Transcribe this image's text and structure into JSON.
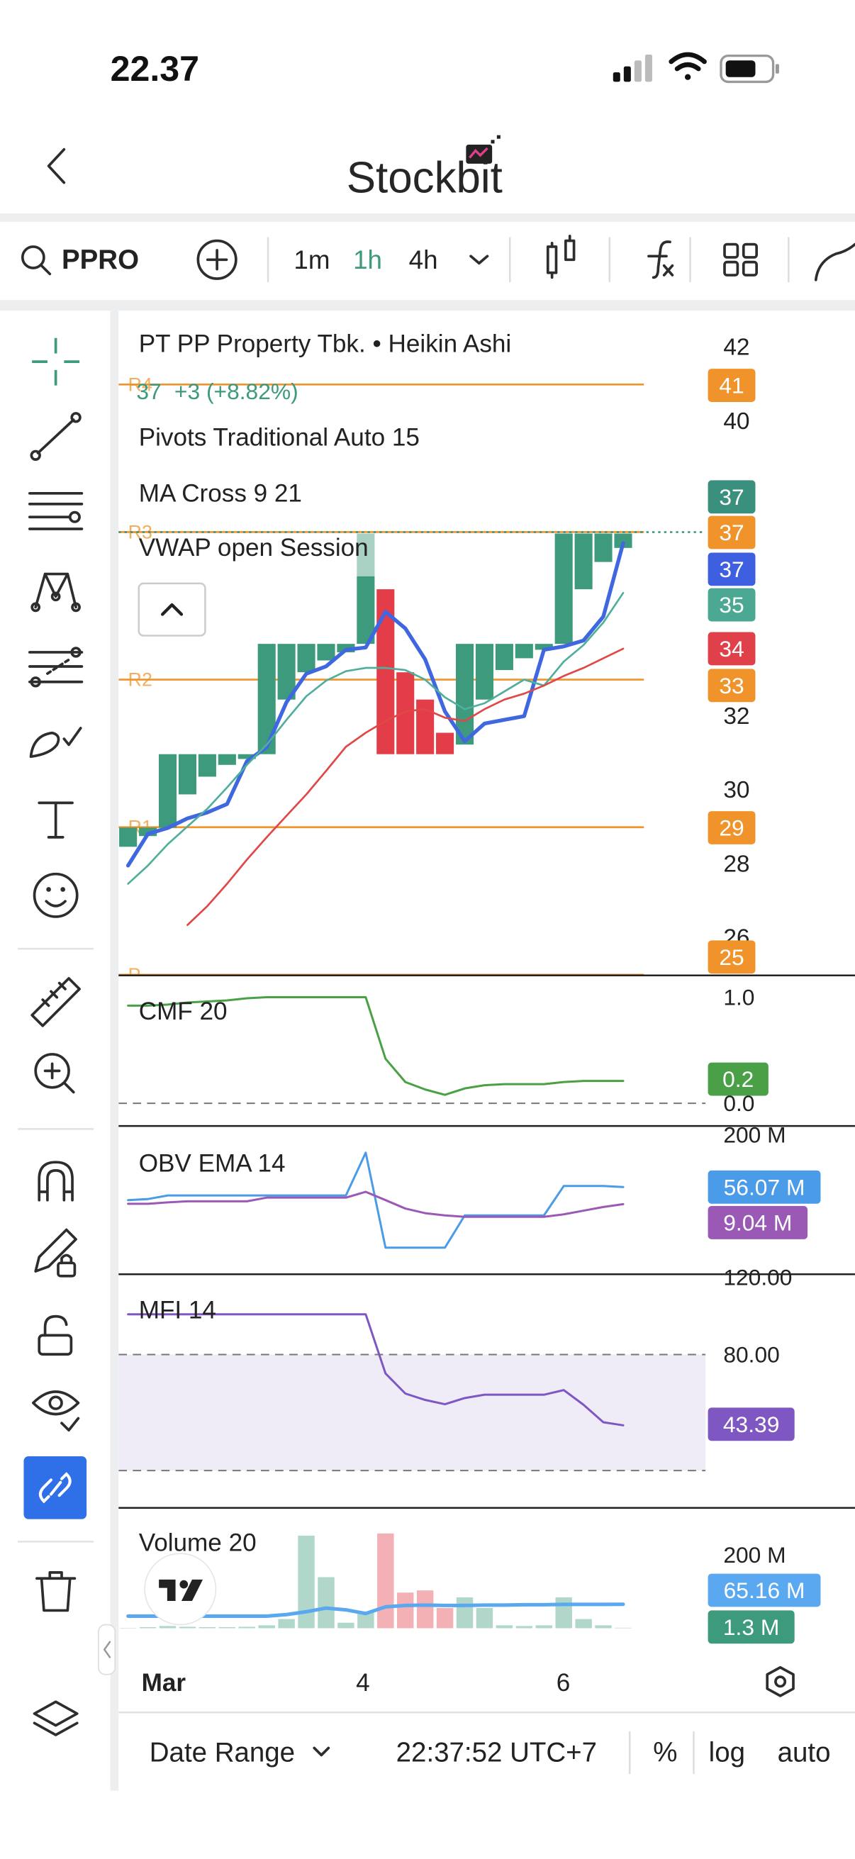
{
  "status_bar": {
    "time": "22.37"
  },
  "header": {
    "title": "Stockbit"
  },
  "toolbar": {
    "symbol": "PPRO",
    "intervals": [
      "1m",
      "1h",
      "4h"
    ],
    "selected_interval": 1
  },
  "legend": {
    "title": "PT PP Property Tbk. • Heikin Ashi",
    "last": "37",
    "change": "+3 (+8.82%)",
    "indicators": [
      "Pivots Traditional Auto 15",
      "MA Cross 9 21",
      "VWAP open Session"
    ]
  },
  "chart": {
    "type": "candlestick",
    "up_color": "#3d9a7c",
    "down_color": "#e23d48",
    "price_pane": {
      "ylim": [
        25,
        43
      ],
      "yticks": [
        26,
        28,
        30,
        32,
        40,
        42
      ],
      "candles": [
        {
          "open": 28.47,
          "close": 28.99
        },
        {
          "open": 28.76,
          "close": 28.99
        },
        {
          "open": 28.99,
          "close": 30.98
        },
        {
          "open": 29.89,
          "close": 30.98
        },
        {
          "open": 30.37,
          "close": 30.98
        },
        {
          "open": 30.69,
          "close": 30.98
        },
        {
          "open": 30.85,
          "close": 30.98
        },
        {
          "open": 30.98,
          "close": 33.97
        },
        {
          "open": 32.46,
          "close": 33.97
        },
        {
          "open": 33.2,
          "close": 33.97
        },
        {
          "open": 33.52,
          "close": 33.97
        },
        {
          "open": 33.74,
          "close": 33.97
        },
        {
          "open": 33.97,
          "close": 35.8,
          "high": 36.96
        },
        {
          "open": 35.45,
          "close": 30.98
        },
        {
          "open": 33.2,
          "close": 30.98
        },
        {
          "open": 32.46,
          "close": 30.98
        },
        {
          "open": 31.56,
          "close": 30.98
        },
        {
          "open": 31.24,
          "close": 33.97
        },
        {
          "open": 32.46,
          "close": 33.97
        },
        {
          "open": 33.26,
          "close": 33.97
        },
        {
          "open": 33.58,
          "close": 33.97
        },
        {
          "open": 33.81,
          "close": 33.97
        },
        {
          "open": 33.97,
          "close": 36.96
        },
        {
          "open": 35.45,
          "close": 36.96
        },
        {
          "open": 36.19,
          "close": 36.96
        },
        {
          "open": 36.57,
          "close": 36.96
        }
      ],
      "lines": [
        {
          "color": "#3f67e0",
          "values": [
            27.96,
            28.82,
            28.98,
            29.24,
            29.4,
            29.63,
            30.79,
            31.17,
            32.39,
            33.16,
            33.36,
            33.81,
            33.87,
            34.84,
            34.39,
            33.55,
            32.14,
            31.33,
            31.81,
            31.91,
            32.01,
            33.81,
            33.9,
            34.06,
            34.71,
            36.7
          ]
        },
        {
          "color": "#4fae9c",
          "values": [
            27.47,
            27.96,
            28.54,
            29.02,
            29.5,
            30.08,
            30.69,
            31.24,
            31.91,
            32.55,
            32.97,
            33.23,
            33.32,
            33.32,
            33.26,
            33.0,
            32.52,
            32.2,
            32.36,
            32.68,
            33.0,
            32.84,
            33.49,
            33.94,
            34.55,
            35.35
          ]
        },
        {
          "color": "#e04848",
          "values": [
            null,
            null,
            null,
            26.35,
            26.86,
            27.47,
            28.12,
            28.73,
            29.31,
            29.89,
            30.53,
            31.18,
            31.56,
            31.88,
            32.14,
            32.2,
            31.97,
            31.88,
            32.2,
            32.46,
            32.62,
            32.84,
            33.1,
            33.32,
            33.58,
            33.84
          ]
        }
      ],
      "pivot_color": "#f0932b",
      "pivots": [
        {
          "label": "R4",
          "value": 41
        },
        {
          "label": "R3",
          "value": 37
        },
        {
          "label": "R2",
          "value": 33
        },
        {
          "label": "R1",
          "value": 29
        },
        {
          "label": "P",
          "value": 25
        }
      ],
      "last_price_line": 37,
      "price_labels": [
        {
          "value": 41,
          "color": "#f0932b"
        },
        {
          "value": 37,
          "color": "#3a8f7d"
        },
        {
          "value": 37,
          "color": "#f0932b"
        },
        {
          "value": 37,
          "color": "#3d5fe0"
        },
        {
          "value": 35,
          "color": "#4aa893"
        },
        {
          "value": 34,
          "color": "#e0404a"
        },
        {
          "value": 33,
          "color": "#f0932b"
        },
        {
          "value": 29,
          "color": "#f0932b"
        },
        {
          "value": 25,
          "color": "#f0932b"
        }
      ]
    },
    "cmf": {
      "title": "CMF 20",
      "ylim": [
        -0.22,
        1.2
      ],
      "yticks": [
        {
          "value": 1,
          "label": "1.0"
        },
        {
          "value": 0,
          "label": "0.0"
        }
      ],
      "levels": [
        0
      ],
      "series": [
        {
          "color": "#4aa046",
          "values": [
            0.92,
            0.92,
            0.93,
            0.95,
            0.96,
            0.97,
            0.99,
            1.0,
            1.0,
            1.0,
            1.0,
            1.0,
            1.0,
            0.42,
            0.2,
            0.13,
            0.08,
            0.14,
            0.17,
            0.18,
            0.18,
            0.18,
            0.2,
            0.21,
            0.21,
            0.21
          ],
          "value_label": "0.2"
        }
      ]
    },
    "obv": {
      "title": "OBV EMA 14",
      "ylim": [
        -186,
        223
      ],
      "yticks": [
        {
          "value": 200,
          "label": "200 M"
        }
      ],
      "series": [
        {
          "color": "#4a9be8",
          "values": [
            20,
            23,
            33,
            33,
            33,
            33,
            33,
            33,
            33,
            33,
            33,
            33,
            151,
            -111,
            -111,
            -111,
            -111,
            -22,
            -22,
            -22,
            -22,
            -22,
            59,
            59,
            59,
            56.07
          ],
          "value_label": "56.07 M"
        },
        {
          "color": "#9b59b6",
          "values": [
            10,
            10,
            14,
            17,
            17,
            17,
            17,
            27,
            27,
            27,
            27,
            27,
            43,
            20,
            -3,
            -16,
            -22,
            -26,
            -26,
            -26,
            -26,
            -26,
            -19,
            -9,
            1,
            9.04
          ],
          "value_label": "9.04 M"
        }
      ]
    },
    "mfi": {
      "title": "MFI 14",
      "ylim": [
        0.4,
        121.2
      ],
      "yticks": [
        {
          "value": 120,
          "label": "120.00"
        },
        {
          "value": 80,
          "label": "80.00"
        }
      ],
      "levels": [
        80,
        20
      ],
      "band_color": "#efecf8",
      "series": [
        {
          "color": "#7e57c2",
          "values": [
            100.8,
            100.8,
            100.8,
            100.8,
            100.8,
            100.8,
            100.8,
            100.8,
            100.8,
            100.8,
            100.8,
            100.8,
            100.8,
            70.2,
            59.8,
            56.5,
            54.3,
            57.5,
            59.2,
            59.2,
            59.2,
            59.2,
            61.6,
            54,
            45,
            43.39
          ],
          "value_label": "43.39"
        }
      ]
    },
    "volume": {
      "title": "Volume 20",
      "ylim": [
        0,
        326
      ],
      "yticks": [
        {
          "value": 200,
          "label": "200 M"
        }
      ],
      "values": [
        1,
        3,
        6,
        4,
        3,
        3,
        4,
        8,
        25,
        252,
        139,
        15,
        45,
        258,
        97,
        103,
        55,
        84,
        55,
        8,
        6,
        8,
        84,
        25,
        8,
        1.3
      ],
      "value_label": "1.3 M",
      "ma": {
        "color": "#5aa8ef",
        "values": [
          33,
          33,
          33,
          33,
          33,
          33,
          33,
          33,
          37,
          45,
          55,
          50,
          40,
          58,
          62,
          63,
          62,
          62,
          63,
          63,
          64,
          64,
          65,
          65,
          65,
          65.16
        ],
        "value_label": "65.16 M"
      }
    },
    "x_labels": [
      "Mar",
      "4",
      "6"
    ]
  },
  "bottom_bar": {
    "date_range": "Date Range",
    "time": "22:37:52 UTC+7",
    "percent": "%",
    "log": "log",
    "auto": "auto"
  }
}
